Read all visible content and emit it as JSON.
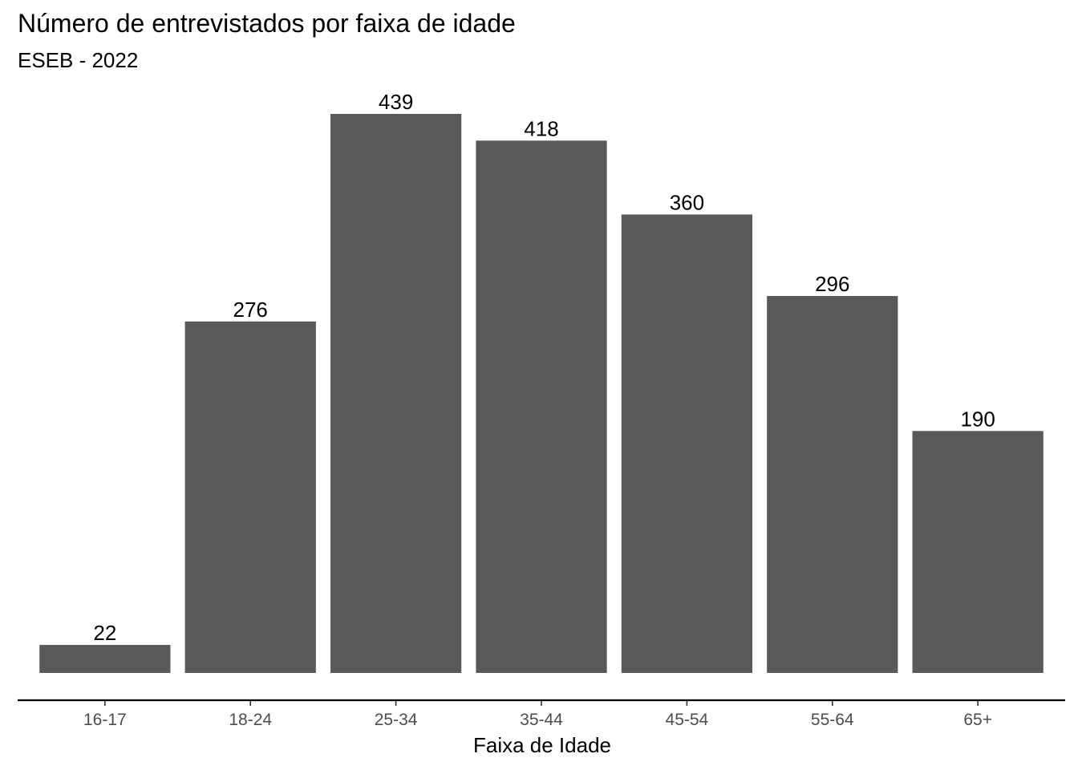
{
  "chart_data": {
    "type": "bar",
    "title": "Número de entrevistados por faixa de idade",
    "subtitle": "ESEB - 2022",
    "xlabel": "Faixa de Idade",
    "ylabel": "",
    "categories": [
      "16-17",
      "18-24",
      "25-34",
      "35-44",
      "45-54",
      "55-64",
      "65+"
    ],
    "values": [
      22,
      276,
      439,
      418,
      360,
      296,
      190
    ],
    "ylim": [
      0,
      439
    ],
    "bar_color": "#595959",
    "grid": false,
    "legend": "none"
  }
}
